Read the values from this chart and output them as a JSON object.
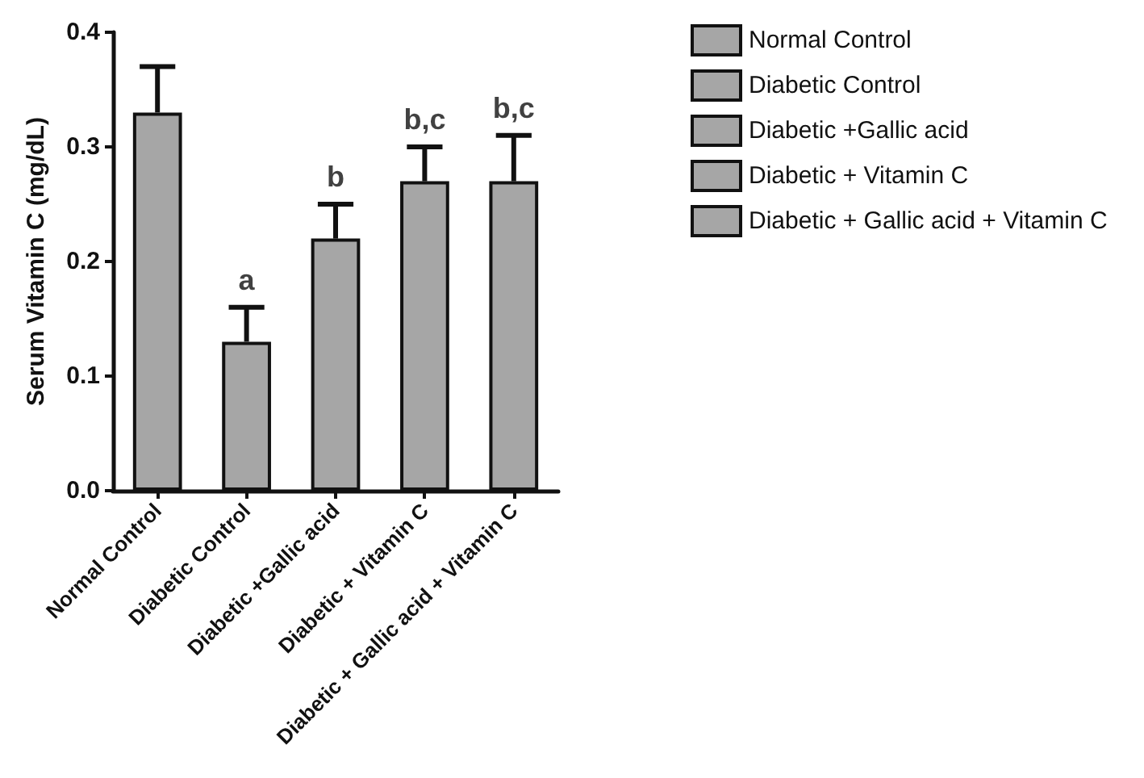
{
  "chart_data": {
    "type": "bar",
    "ylabel": "Serum Vitamin C (mg/dL)",
    "categories": [
      "Normal Control",
      "Diabetic Control",
      "Diabetic +Gallic acid",
      "Diabetic + Vitamin C",
      "Diabetic + Gallic acid + Vitamin C"
    ],
    "series": [
      {
        "name": "Normal Control",
        "color": "#a6a6a6",
        "values": [
          0.33,
          null,
          null,
          null,
          null
        ],
        "errors": [
          [
            0.33,
            0.37
          ],
          null,
          null,
          null,
          null
        ]
      },
      {
        "name": "Diabetic Control",
        "color": "#a6a6a6",
        "values": [
          null,
          0.13,
          null,
          null,
          null
        ],
        "errors": [
          null,
          [
            0.13,
            0.16
          ],
          null,
          null,
          null
        ]
      },
      {
        "name": "Diabetic +Gallic acid",
        "color": "#a6a6a6",
        "values": [
          null,
          null,
          0.22,
          null,
          null
        ],
        "errors": [
          null,
          null,
          [
            0.22,
            0.25
          ],
          null,
          null
        ]
      },
      {
        "name": "Diabetic + Vitamin C",
        "color": "#a6a6a6",
        "values": [
          null,
          null,
          null,
          0.27,
          null
        ],
        "errors": [
          null,
          null,
          null,
          [
            0.27,
            0.3
          ],
          null
        ]
      },
      {
        "name": "Diabetic + Gallic acid + Vitamin C",
        "color": "#a6a6a6",
        "values": [
          null,
          null,
          null,
          null,
          0.27
        ],
        "errors": [
          null,
          null,
          null,
          null,
          [
            0.27,
            0.31
          ]
        ]
      }
    ],
    "ylim": [
      0,
      0.4
    ],
    "yticks": [
      {
        "value": 0,
        "label": "0.0"
      },
      0.1,
      0.2,
      0.3,
      0.4
    ],
    "annotations": [
      {
        "text": "a",
        "x": "Diabetic Control",
        "y": 0.16
      },
      {
        "text": "b",
        "x": "Diabetic +Gallic acid",
        "y": 0.25
      },
      {
        "text": "b,c",
        "x": "Diabetic + Vitamin C",
        "y": 0.3
      },
      {
        "text": "b,c",
        "x": "Diabetic + Gallic acid + Vitamin C",
        "y": 0.31
      }
    ],
    "legend": "right",
    "grid": false
  }
}
